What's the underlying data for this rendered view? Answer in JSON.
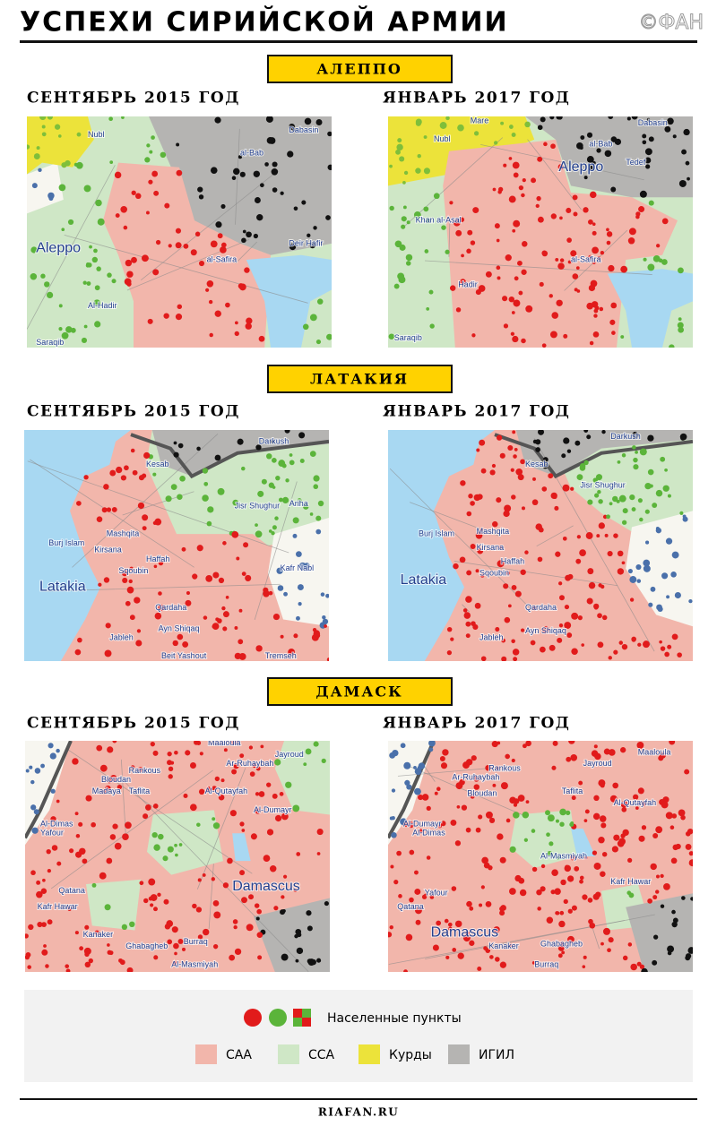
{
  "header": {
    "title": "УСПЕХИ СИРИЙСКОЙ АРМИИ",
    "logo": "©ФАН"
  },
  "sections": [
    {
      "title": "АЛЕППО",
      "maps": [
        {
          "period": "СЕНТЯБРЬ 2015 ГОД",
          "labels": [
            "Nubl",
            "al-Bab",
            "Dabasin",
            "Aleppo",
            "al-Safira",
            "Deir Hafir",
            "Al-Hadir",
            "Saraqib"
          ]
        },
        {
          "period": "ЯНВАРЬ 2017 ГОД",
          "labels": [
            "Mare",
            "Nubl",
            "Dabasin",
            "al-Bab",
            "Tedef",
            "Aleppo",
            "Khan al-Asal",
            "al-Safira",
            "Hadir",
            "Saraqib"
          ]
        }
      ]
    },
    {
      "title": "ЛАТАКИЯ",
      "maps": [
        {
          "period": "СЕНТЯБРЬ 2015 ГОД",
          "labels": [
            "Darkush",
            "Kesab",
            "Jisr Shughur",
            "Ariha",
            "Burj Islam",
            "Mashqita",
            "Kirsana",
            "Haffah",
            "Latakia",
            "Sqoubin",
            "Qardaha",
            "Jableh",
            "Ayn Shiqaq",
            "Kafr Nabl",
            "Beit Yashout",
            "Tremseh"
          ]
        },
        {
          "period": "ЯНВАРЬ 2017 ГОД",
          "labels": [
            "Darkush",
            "Kesab",
            "Jisr Shughur",
            "Burj Islam",
            "Mashqita",
            "Kirsana",
            "Haffah",
            "Latakia",
            "Sqoubin",
            "Qardaha",
            "Jableh",
            "Ayn Shiqaq"
          ]
        }
      ]
    },
    {
      "title": "ДАМАСК",
      "maps": [
        {
          "period": "СЕНТЯБРЬ 2015 ГОД",
          "labels": [
            "Maaloula",
            "Jayroud",
            "Rankous",
            "Ar-Ruhaybah",
            "Bloudan",
            "Madaya",
            "Taflita",
            "Al-Qutayfah",
            "Al-Dumayr",
            "Al-Dimas",
            "Yafour",
            "Qatana",
            "Kafr Hawar",
            "Damascus",
            "Kanaker",
            "Ghabagheb",
            "Burraq",
            "Al-Masmiyah"
          ]
        },
        {
          "period": "ЯНВАРЬ 2017 ГОД",
          "labels": [
            "Maaloula",
            "Jayroud",
            "Rankous",
            "Ar-Ruhaybah",
            "Bloudan",
            "Taflita",
            "Al-Qutayfah",
            "Al-Dumayr",
            "Al-Dimas",
            "Yafour",
            "Qatana",
            "Kafr Hawar",
            "Damascus",
            "Kanaker",
            "Ghabagheb",
            "Burraq",
            "Al-Masmiyah"
          ]
        }
      ]
    }
  ],
  "legend": {
    "settlements": "Населенные пункты",
    "areas": [
      "САА",
      "ССА",
      "Курды",
      "ИГИЛ"
    ]
  },
  "footer": {
    "site": "RIAFAN.RU"
  }
}
